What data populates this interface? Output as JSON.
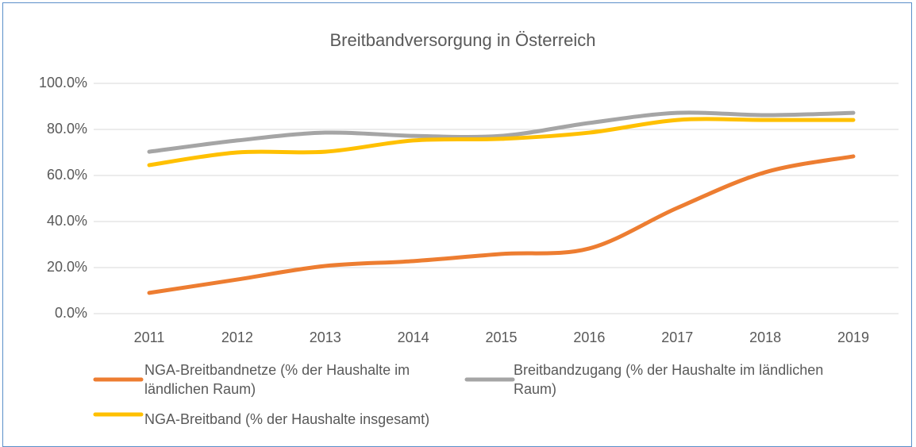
{
  "chart_data": {
    "type": "line",
    "title": "Breitbandversorgung in Österreich",
    "categories": [
      "2011",
      "2012",
      "2013",
      "2014",
      "2015",
      "2016",
      "2017",
      "2018",
      "2019"
    ],
    "series": [
      {
        "name": "NGA-Breitbandnetze (% der Haushalte im ländlichen Raum)",
        "color": "#ed7d31",
        "values": [
          9.0,
          14.8,
          20.7,
          22.8,
          25.9,
          28.3,
          45.9,
          61.4,
          68.3
        ]
      },
      {
        "name": "Breitbandzugang (% der Haushalte im ländlichen Raum)",
        "color": "#a5a5a5",
        "values": [
          70.3,
          75.2,
          78.6,
          77.2,
          77.2,
          82.8,
          87.2,
          86.2,
          87.2
        ]
      },
      {
        "name": "NGA-Breitband (% der Haushalte insgesamt)",
        "color": "#ffc000",
        "values": [
          64.5,
          70.0,
          70.3,
          75.2,
          75.9,
          78.6,
          84.1,
          84.1,
          84.1
        ]
      }
    ],
    "ylim": [
      0,
      100
    ],
    "yticks": [
      {
        "value": 0,
        "label": "0.0%"
      },
      {
        "value": 20,
        "label": "20.0%"
      },
      {
        "value": 40,
        "label": "40.0%"
      },
      {
        "value": 60,
        "label": "60.0%"
      },
      {
        "value": 80,
        "label": "80.0%"
      },
      {
        "value": 100,
        "label": "100.0%"
      }
    ],
    "grid": true,
    "smooth": true,
    "legend": "bottom"
  }
}
